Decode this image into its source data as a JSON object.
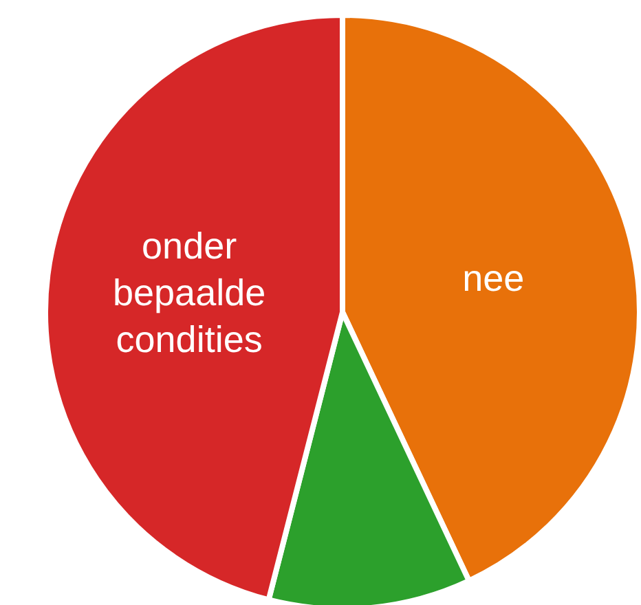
{
  "chart_data": {
    "type": "pie",
    "categories": [
      "nee",
      null,
      "onder bepaalde condities"
    ],
    "values": [
      43,
      11,
      46
    ],
    "colors": [
      "#e8710a",
      "#2ca02c",
      "#d62728"
    ],
    "legend": false
  }
}
